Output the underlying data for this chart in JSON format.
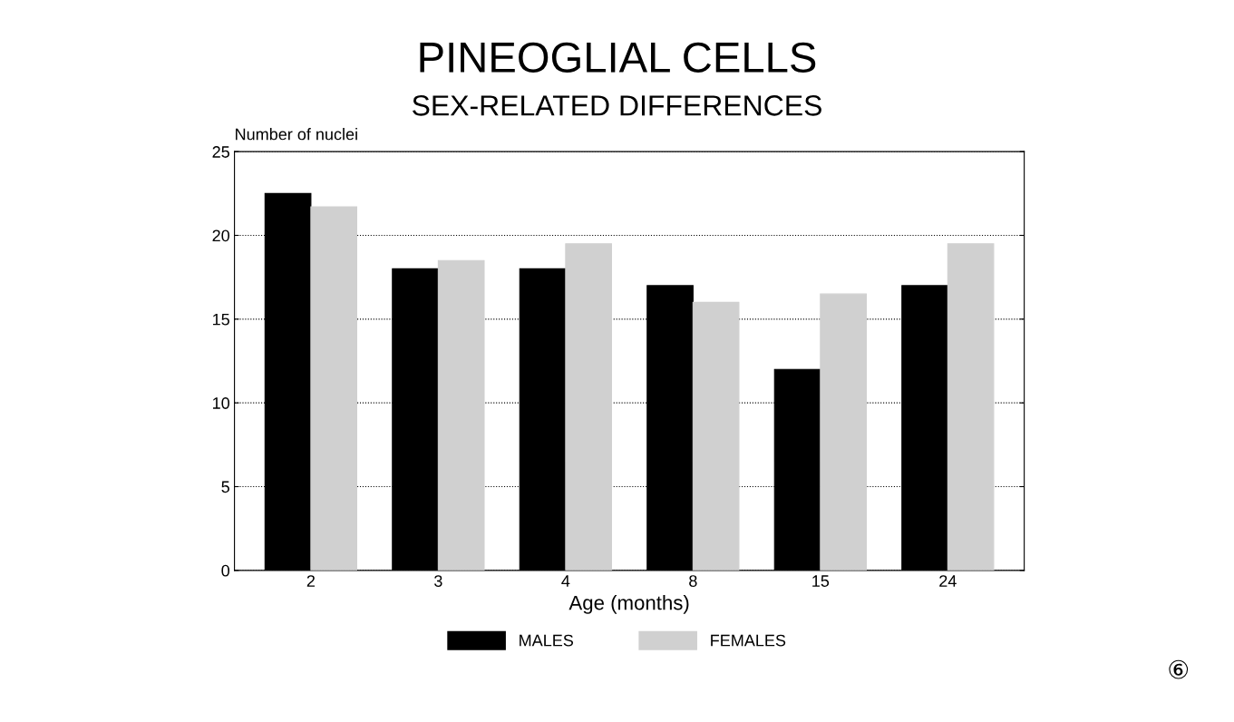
{
  "chart_data": {
    "type": "bar",
    "title": "PINEOGLIAL CELLS",
    "subtitle": "SEX-RELATED DIFFERENCES",
    "xlabel": "Age (months)",
    "ylabel": "Number of nuclei",
    "categories": [
      "2",
      "3",
      "4",
      "8",
      "15",
      "24"
    ],
    "series": [
      {
        "name": "MALES",
        "color": "#000000",
        "values": [
          22.5,
          18,
          18,
          17,
          12,
          17
        ]
      },
      {
        "name": "FEMALES",
        "color": "#d0d0d0",
        "values": [
          21.7,
          18.5,
          19.5,
          16,
          16.5,
          19.5
        ]
      }
    ],
    "ylim": [
      0,
      25
    ],
    "yticks": [
      0,
      5,
      10,
      15,
      20,
      25
    ],
    "grid": "y",
    "legend": "bottom",
    "annotations": [
      "⑥"
    ]
  }
}
